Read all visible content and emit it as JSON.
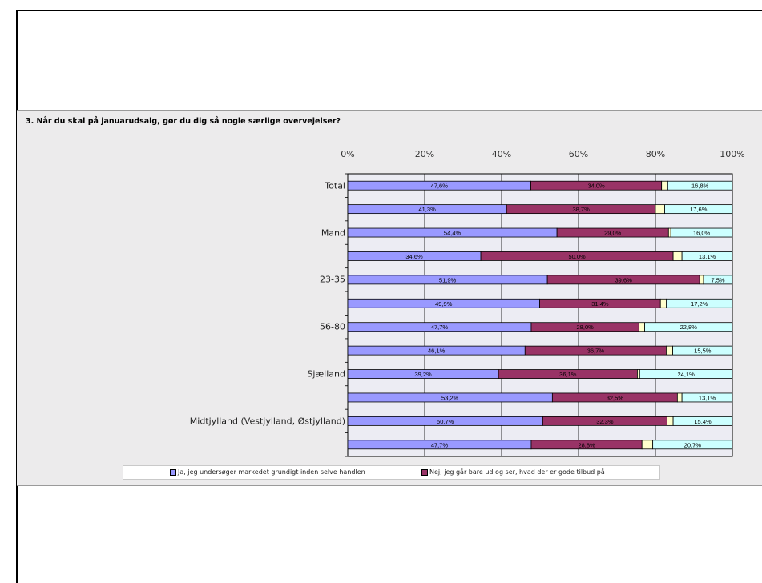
{
  "chart_data": {
    "type": "bar",
    "stacked": true,
    "orientation": "horizontal",
    "title": "3. Når du skal på januarudsalg, gør du dig så nogle særlige overvejelser?",
    "x_ticks": [
      "0%",
      "20%",
      "40%",
      "60%",
      "80%",
      "100%"
    ],
    "xlim": [
      0,
      100
    ],
    "visible_category_labels": [
      "Total",
      "Mand",
      "23-35",
      "56-80",
      "Sjælland",
      "Midtjylland (Vestjylland, Østjylland)"
    ],
    "rows": [
      {
        "label": "Total",
        "values": [
          47.6,
          34.0,
          1.6,
          16.8
        ],
        "labels": [
          "47,6%",
          "34,0%",
          "",
          "16,8%"
        ]
      },
      {
        "label": "",
        "values": [
          41.3,
          38.7,
          2.4,
          17.6
        ],
        "labels": [
          "41,3%",
          "38,7%",
          "",
          "17,6%"
        ]
      },
      {
        "label": "Mand",
        "values": [
          54.4,
          29.0,
          0.6,
          16.0
        ],
        "labels": [
          "54,4%",
          "29,0%",
          "",
          "16,0%"
        ]
      },
      {
        "label": "",
        "values": [
          34.6,
          50.0,
          2.3,
          13.1
        ],
        "labels": [
          "34,6%",
          "50,0%",
          "",
          "13,1%"
        ]
      },
      {
        "label": "23-35",
        "values": [
          51.9,
          39.6,
          1.0,
          7.5
        ],
        "labels": [
          "51,9%",
          "39,6%",
          "",
          "7,5%"
        ]
      },
      {
        "label": "",
        "values": [
          49.9,
          31.4,
          1.5,
          17.2
        ],
        "labels": [
          "49,9%",
          "31,4%",
          "",
          "17,2%"
        ]
      },
      {
        "label": "56-80",
        "values": [
          47.7,
          28.0,
          1.5,
          22.8
        ],
        "labels": [
          "47,7%",
          "28,0%",
          "",
          "22,8%"
        ]
      },
      {
        "label": "",
        "values": [
          46.1,
          36.7,
          1.7,
          15.5
        ],
        "labels": [
          "46,1%",
          "36,7%",
          "",
          "15,5%"
        ]
      },
      {
        "label": "Sjælland",
        "values": [
          39.2,
          36.1,
          0.6,
          24.1
        ],
        "labels": [
          "39,2%",
          "36,1%",
          "",
          "24,1%"
        ]
      },
      {
        "label": "",
        "values": [
          53.2,
          32.5,
          1.2,
          13.1
        ],
        "labels": [
          "53,2%",
          "32,5%",
          "",
          "13,1%"
        ]
      },
      {
        "label": "Midtjylland (Vestjylland, Østjylland)",
        "values": [
          50.7,
          32.3,
          1.6,
          15.4
        ],
        "labels": [
          "50,7%",
          "32,3%",
          "",
          "15,4%"
        ]
      },
      {
        "label": "",
        "values": [
          47.7,
          28.8,
          2.8,
          20.7
        ],
        "labels": [
          "47,7%",
          "28,8%",
          "",
          "20,7%"
        ]
      }
    ],
    "series_colors": [
      "#9999ff",
      "#993366",
      "#ffffcc",
      "#ccffff"
    ],
    "legend": [
      {
        "name": "Ja, jeg undersøger markedet grundigt inden selve handlen",
        "color": "#9999ff"
      },
      {
        "name": "Nej, jeg går bare ud og ser, hvad der er gode tilbud på",
        "color": "#993366"
      }
    ],
    "legend_position": "bottom",
    "grid": true
  }
}
